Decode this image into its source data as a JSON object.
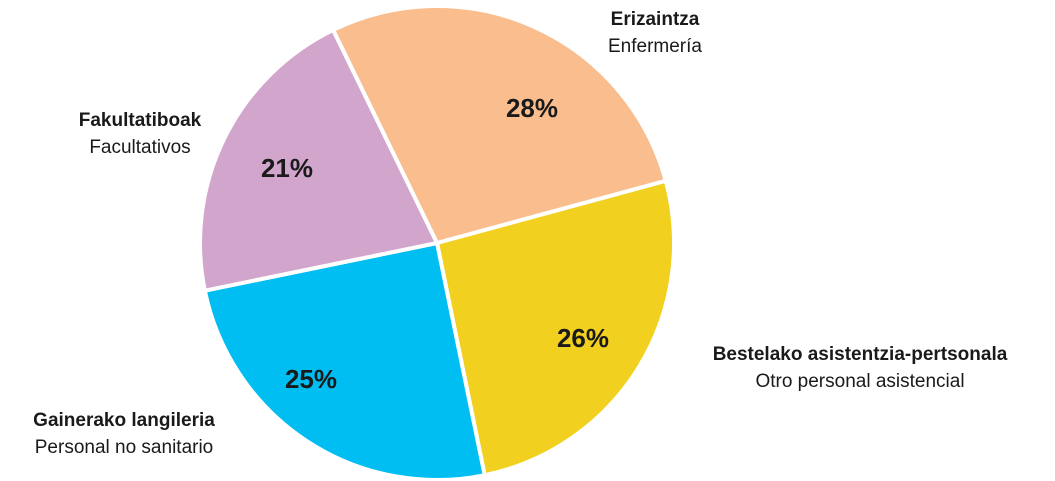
{
  "chart_data": {
    "type": "pie",
    "categories": [
      "Erizaintza",
      "Bestelako asistentzia-pertsonala",
      "Gainerako langileria",
      "Fakultatiboak"
    ],
    "subcategories": [
      "Enfermería",
      "Otro personal asistencial",
      "Personal no sanitario",
      "Facultativos"
    ],
    "values": [
      28,
      26,
      25,
      21
    ],
    "value_labels": [
      "28%",
      "26%",
      "25%",
      "21%"
    ],
    "colors": [
      "#f9bd8e",
      "#f2d01f",
      "#00bdf2",
      "#d2a6cc"
    ]
  }
}
